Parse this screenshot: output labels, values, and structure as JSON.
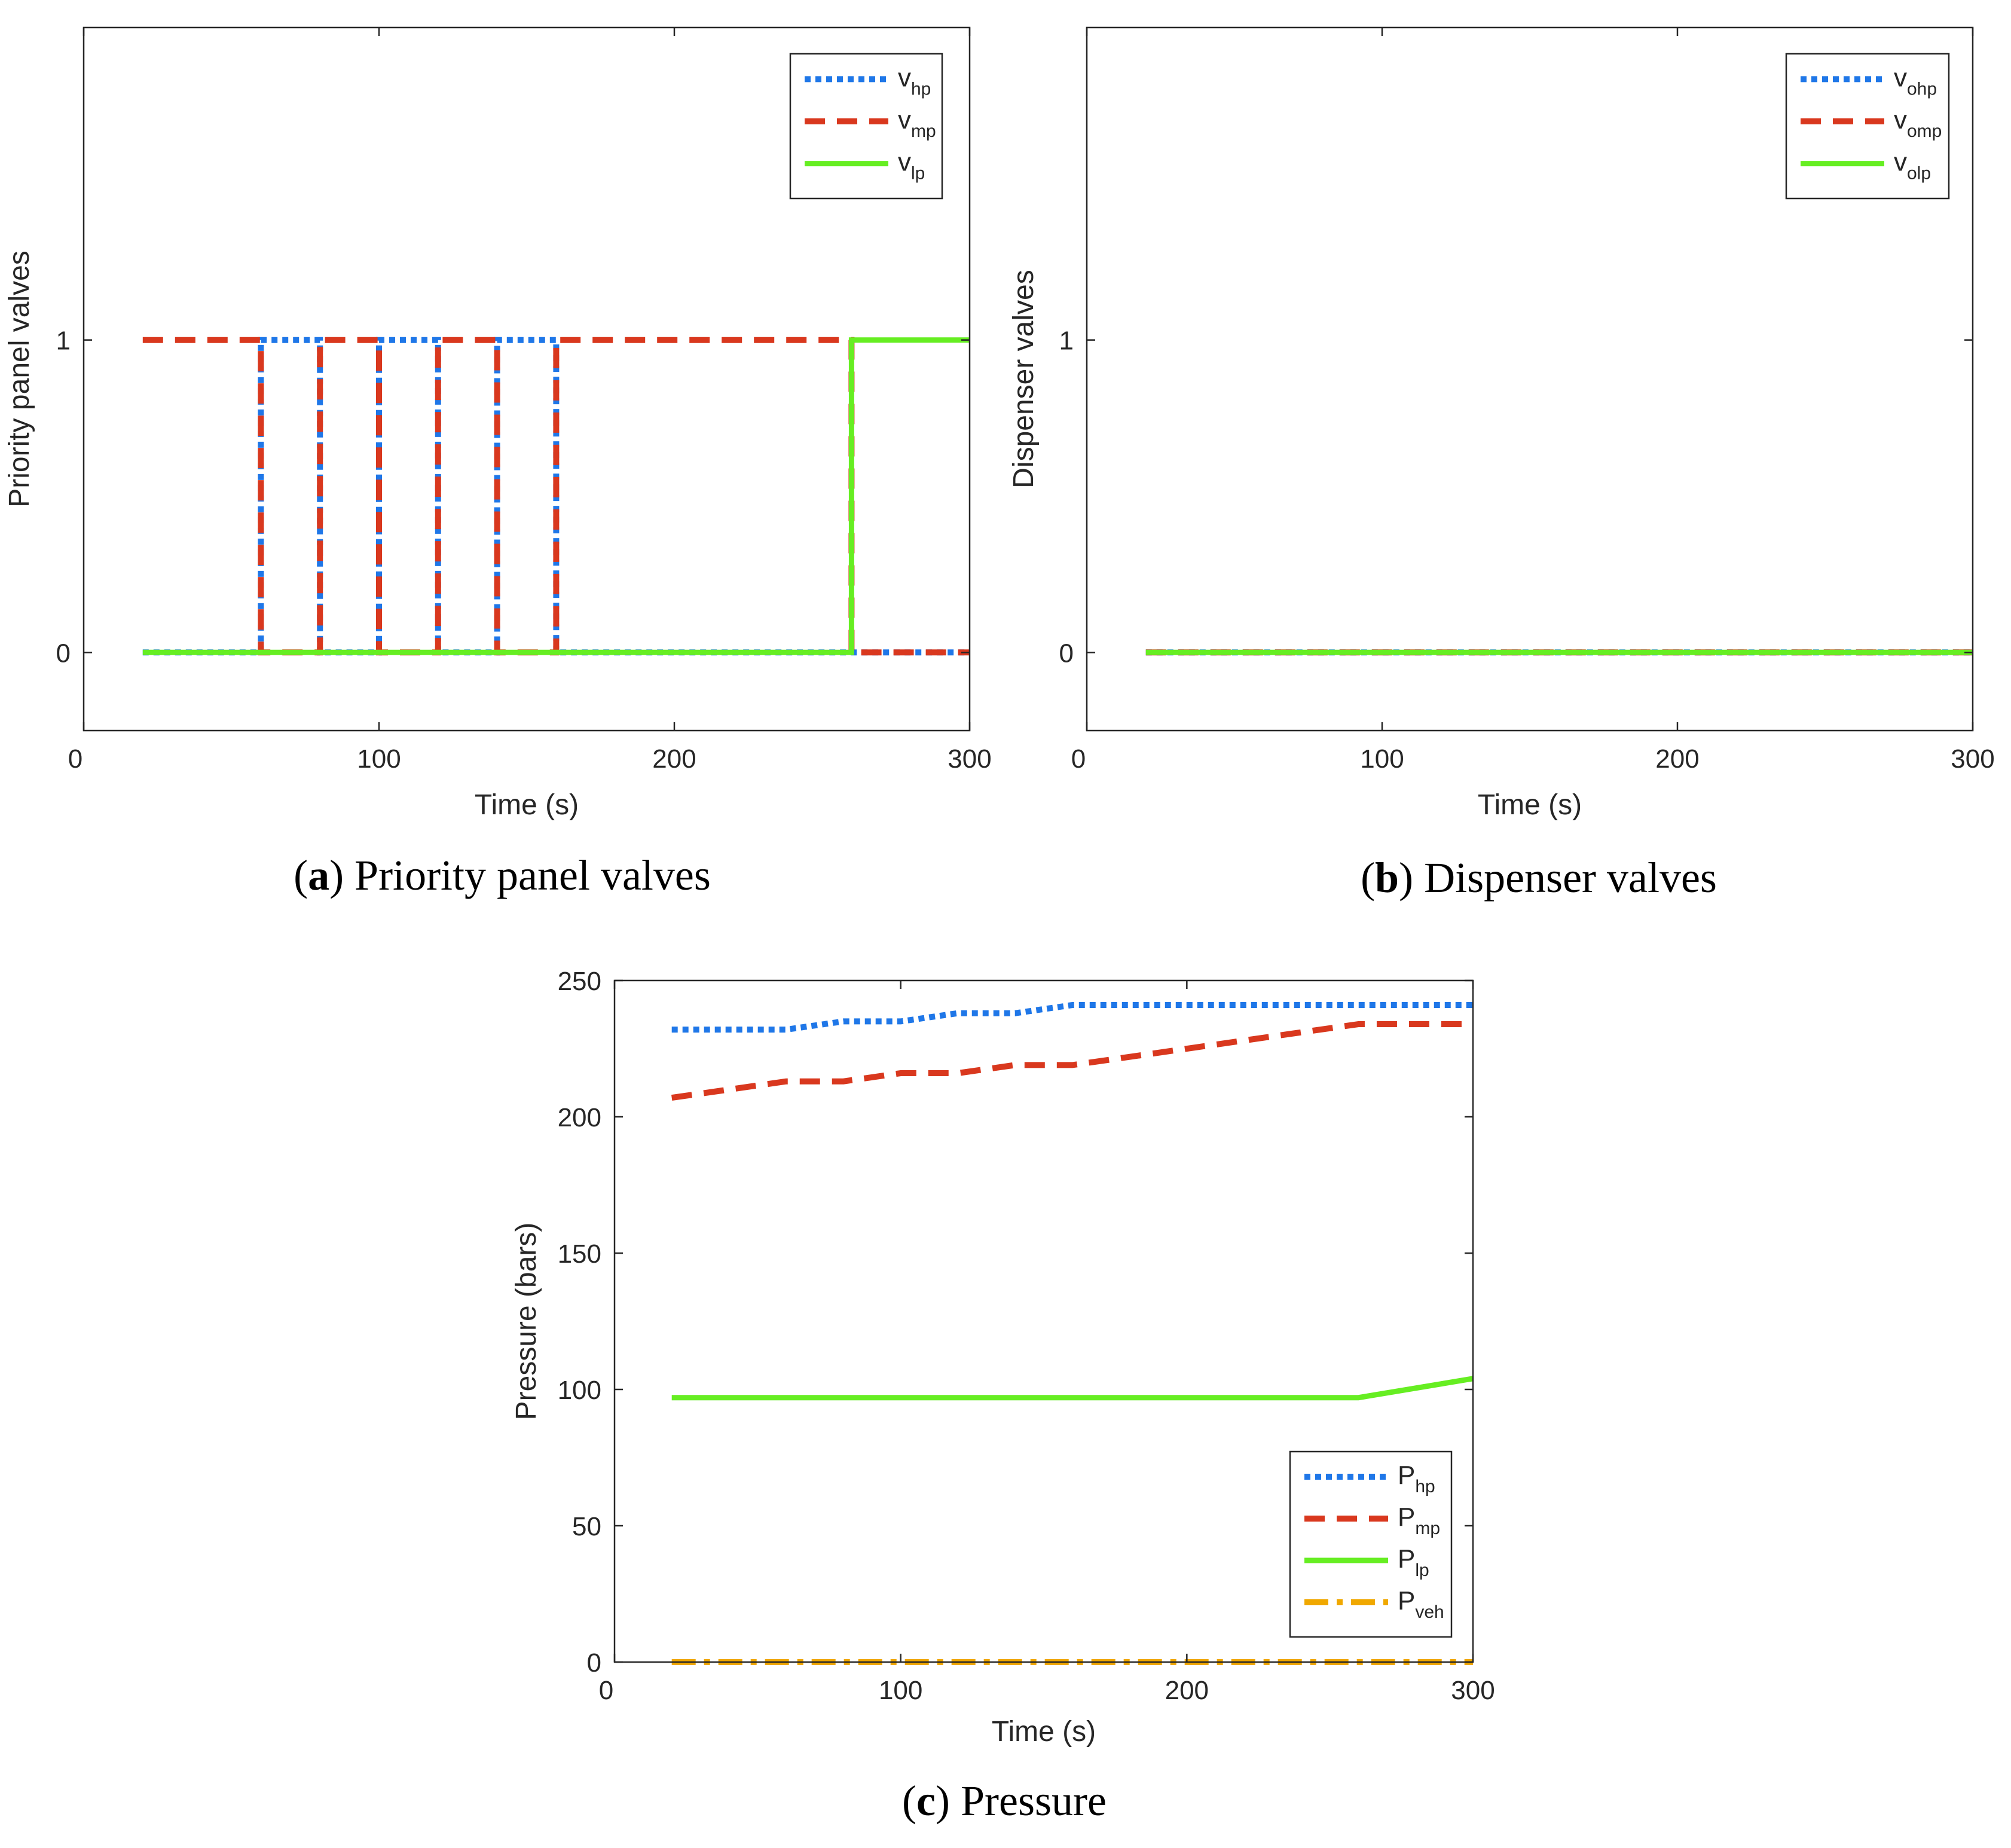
{
  "chart_data": [
    {
      "id": "a",
      "type": "line",
      "caption": {
        "letter": "a",
        "text": "Priority panel valves"
      },
      "xlabel": "Time (s)",
      "ylabel": "Priority panel valves",
      "xlim": [
        0,
        300
      ],
      "ylim": [
        -0.25,
        2
      ],
      "xticks": [
        0,
        100,
        200,
        300
      ],
      "xtick_labels": [
        "0",
        "100",
        "200",
        "300"
      ],
      "yticks": [
        0,
        1
      ],
      "ytick_labels": [
        "0",
        "1"
      ],
      "legend_position": "top-right",
      "series": [
        {
          "name": "v",
          "sub": "hp",
          "color": "#1f77e8",
          "style": "dotted",
          "x": [
            20,
            60,
            60,
            80,
            80,
            100,
            100,
            120,
            120,
            140,
            140,
            160,
            160,
            300
          ],
          "y": [
            0,
            0,
            1,
            1,
            0,
            0,
            1,
            1,
            0,
            0,
            1,
            1,
            0,
            0
          ]
        },
        {
          "name": "v",
          "sub": "mp",
          "color": "#d9381e",
          "style": "dashed",
          "x": [
            20,
            60,
            60,
            80,
            80,
            100,
            100,
            120,
            120,
            140,
            140,
            160,
            160,
            260,
            260,
            300
          ],
          "y": [
            1,
            1,
            0,
            0,
            1,
            1,
            0,
            0,
            1,
            1,
            0,
            0,
            1,
            1,
            0,
            0
          ]
        },
        {
          "name": "v",
          "sub": "lp",
          "color": "#66ee22",
          "style": "solid",
          "x": [
            20,
            260,
            260,
            300
          ],
          "y": [
            0,
            0,
            1,
            1
          ]
        }
      ]
    },
    {
      "id": "b",
      "type": "line",
      "caption": {
        "letter": "b",
        "text": "Dispenser valves"
      },
      "xlabel": "Time (s)",
      "ylabel": "Dispenser valves",
      "xlim": [
        0,
        300
      ],
      "ylim": [
        -0.25,
        2
      ],
      "xticks": [
        0,
        100,
        200,
        300
      ],
      "xtick_labels": [
        "0",
        "100",
        "200",
        "300"
      ],
      "yticks": [
        0,
        1
      ],
      "ytick_labels": [
        "0",
        "1"
      ],
      "legend_position": "top-right",
      "series": [
        {
          "name": "v",
          "sub": "ohp",
          "color": "#1f77e8",
          "style": "dotted",
          "x": [
            20,
            300
          ],
          "y": [
            0,
            0
          ]
        },
        {
          "name": "v",
          "sub": "omp",
          "color": "#d9381e",
          "style": "dashed",
          "x": [
            20,
            300
          ],
          "y": [
            0,
            0
          ]
        },
        {
          "name": "v",
          "sub": "olp",
          "color": "#66ee22",
          "style": "solid",
          "x": [
            20,
            300
          ],
          "y": [
            0,
            0
          ]
        }
      ]
    },
    {
      "id": "c",
      "type": "line",
      "caption": {
        "letter": "c",
        "text": "Pressure"
      },
      "xlabel": "Time (s)",
      "ylabel": "Pressure (bars)",
      "xlim": [
        0,
        300
      ],
      "ylim": [
        0,
        250
      ],
      "xticks": [
        0,
        100,
        200,
        300
      ],
      "xtick_labels": [
        "0",
        "100",
        "200",
        "300"
      ],
      "yticks": [
        0,
        50,
        100,
        150,
        200,
        250
      ],
      "ytick_labels": [
        "0",
        "50",
        "100",
        "150",
        "200",
        "250"
      ],
      "legend_position": "bottom-right",
      "series": [
        {
          "name": "P",
          "sub": "hp",
          "color": "#1f77e8",
          "style": "dotted",
          "x": [
            20,
            60,
            80,
            100,
            120,
            140,
            160,
            200,
            260,
            300
          ],
          "y": [
            232,
            232,
            235,
            235,
            238,
            238,
            241,
            241,
            241,
            241
          ]
        },
        {
          "name": "P",
          "sub": "mp",
          "color": "#d9381e",
          "style": "dashed",
          "x": [
            20,
            60,
            80,
            100,
            120,
            140,
            160,
            260,
            300
          ],
          "y": [
            207,
            213,
            213,
            216,
            216,
            219,
            219,
            234,
            234
          ]
        },
        {
          "name": "P",
          "sub": "lp",
          "color": "#66ee22",
          "style": "solid",
          "x": [
            20,
            260,
            300
          ],
          "y": [
            97,
            97,
            104
          ]
        },
        {
          "name": "P",
          "sub": "veh",
          "color": "#f0a800",
          "style": "dashdot",
          "x": [
            20,
            300
          ],
          "y": [
            0,
            0
          ]
        }
      ]
    }
  ]
}
